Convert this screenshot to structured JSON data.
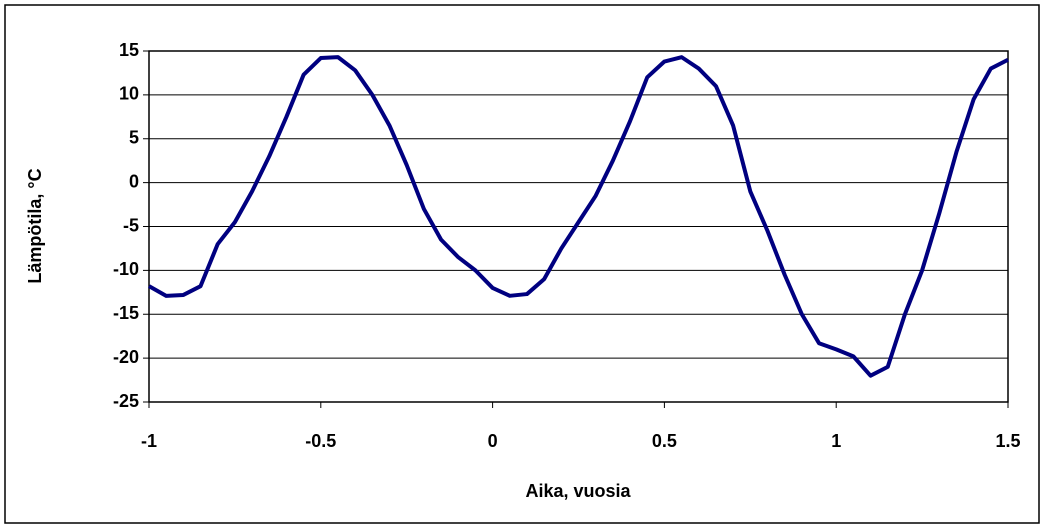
{
  "chart_data": {
    "type": "line",
    "xlabel": "Aika, vuosia",
    "ylabel": "Lämpötila, °C",
    "x": [
      -1.0,
      -0.95,
      -0.9,
      -0.85,
      -0.8,
      -0.75,
      -0.7,
      -0.65,
      -0.6,
      -0.55,
      -0.5,
      -0.45,
      -0.4,
      -0.35,
      -0.3,
      -0.25,
      -0.2,
      -0.15,
      -0.1,
      -0.05,
      0.0,
      0.05,
      0.1,
      0.15,
      0.2,
      0.25,
      0.3,
      0.35,
      0.4,
      0.45,
      0.5,
      0.55,
      0.6,
      0.65,
      0.7,
      0.75,
      0.8,
      0.85,
      0.9,
      0.95,
      1.0,
      1.05,
      1.1,
      1.15,
      1.2,
      1.25,
      1.3,
      1.35,
      1.4,
      1.45,
      1.5
    ],
    "series": [
      {
        "color": "#000080",
        "values": [
          -11.8,
          -12.9,
          -12.8,
          -11.8,
          -7.0,
          -4.5,
          -1.0,
          3.0,
          7.5,
          12.3,
          14.2,
          14.3,
          12.8,
          10.0,
          6.5,
          2.0,
          -3.0,
          -6.5,
          -8.5,
          -10.0,
          -12.0,
          -12.9,
          -12.7,
          -11.0,
          -7.5,
          -4.5,
          -1.5,
          2.5,
          7.0,
          12.0,
          13.8,
          14.3,
          13.0,
          11.0,
          6.5,
          -1.0,
          -5.5,
          -10.5,
          -15.0,
          -18.3,
          -19.0,
          -19.8,
          -22.0,
          -21.0,
          -15.0,
          -10.0,
          -3.5,
          3.5,
          9.5,
          13.0,
          14.0
        ]
      }
    ],
    "xlim": [
      -1,
      1.5
    ],
    "xticks": [
      -1,
      -0.5,
      0,
      0.5,
      1,
      1.5
    ],
    "ylim": [
      -25,
      15
    ],
    "yticks": [
      -25,
      -20,
      -15,
      -10,
      -5,
      0,
      5,
      10,
      15
    ],
    "grid": true
  }
}
